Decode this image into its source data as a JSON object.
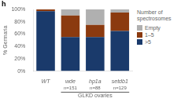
{
  "chart_data": {
    "type": "bar",
    "stacked": true,
    "categories": [
      "WT",
      "wde",
      "hp1a",
      "setdb1"
    ],
    "series": [
      {
        "name": ">5",
        "color": "#1a3a6b",
        "values": [
          97,
          55,
          55,
          65
        ]
      },
      {
        "name": "1–5",
        "color": "#8b3a0f",
        "values": [
          3,
          35,
          20,
          30
        ]
      },
      {
        "name": "Empty",
        "color": "#b0b0b0",
        "values": [
          0,
          10,
          25,
          5
        ]
      }
    ],
    "ylabel": "% Germaria",
    "ylim": [
      0,
      100
    ],
    "yticks": [
      {
        "value": 0,
        "label": "0%"
      },
      {
        "value": 20,
        "label": "20%"
      },
      {
        "value": 40,
        "label": "40%"
      },
      {
        "value": 60,
        "label": "60%"
      },
      {
        "value": 80,
        "label": "80%"
      },
      {
        "value": 100,
        "label": "100%"
      }
    ],
    "n_labels": [
      null,
      "n=151",
      "n=88",
      "n=129"
    ],
    "annotations": [
      {
        "text": "GLKD ovaries",
        "categories": [
          "wde",
          "hp1a",
          "setdb1"
        ]
      }
    ],
    "panel_label": "h",
    "legend_title": "Number of\nspectrosomes",
    "legend": "right",
    "grid": false
  }
}
